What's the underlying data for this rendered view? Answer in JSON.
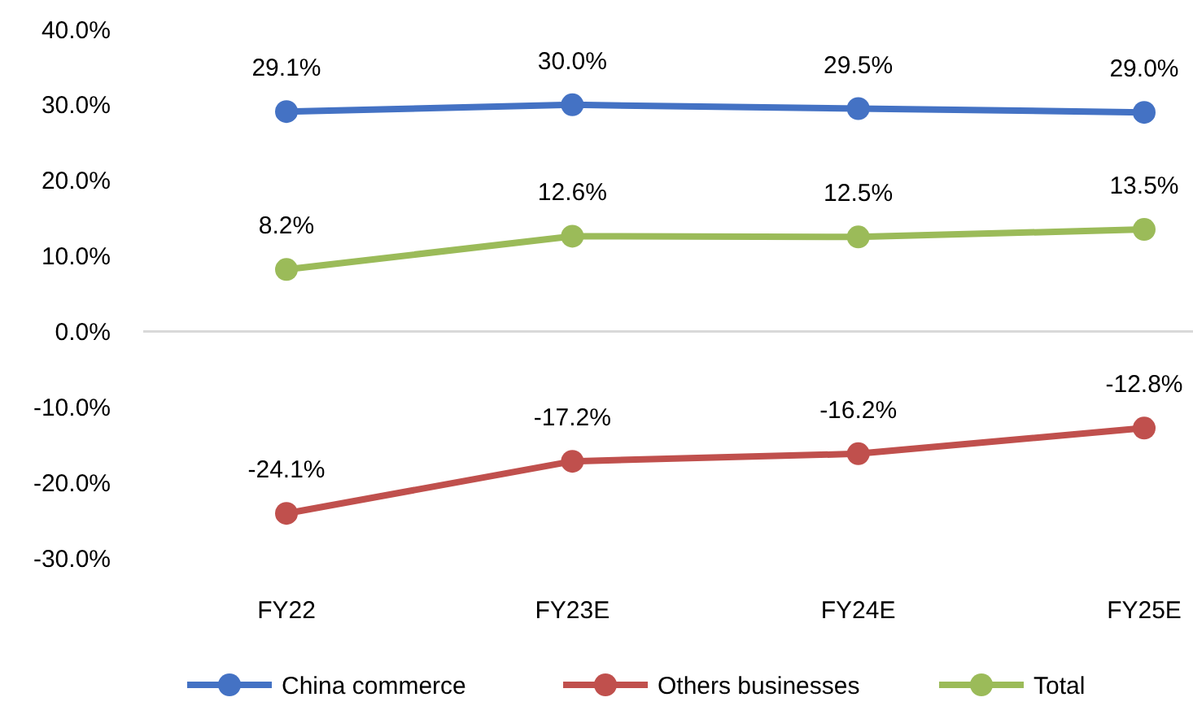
{
  "chart_data": {
    "type": "line",
    "categories": [
      "FY22",
      "FY23E",
      "FY24E",
      "FY25E"
    ],
    "series": [
      {
        "name": "China commerce",
        "color": "#4472c4",
        "values": [
          29.1,
          30.0,
          29.5,
          29.0
        ],
        "value_labels": [
          "29.1%",
          "30.0%",
          "29.5%",
          "29.0%"
        ]
      },
      {
        "name": "Others businesses",
        "color": "#c0504d",
        "values": [
          -24.1,
          -17.2,
          -16.2,
          -12.8
        ],
        "value_labels": [
          "-24.1%",
          "-17.2%",
          "-16.2%",
          "-12.8%"
        ]
      },
      {
        "name": "Total",
        "color": "#9bbb59",
        "values": [
          8.2,
          12.6,
          12.5,
          13.5
        ],
        "value_labels": [
          "8.2%",
          "12.6%",
          "12.5%",
          "13.5%"
        ]
      }
    ],
    "ylim": [
      -30,
      40
    ],
    "yticks": [
      {
        "value": -30,
        "label": "-30.0%"
      },
      {
        "value": -20,
        "label": "-20.0%"
      },
      {
        "value": -10,
        "label": "-10.0%"
      },
      {
        "value": 0,
        "label": "0.0%"
      },
      {
        "value": 10,
        "label": "10.0%"
      },
      {
        "value": 20,
        "label": "20.0%"
      },
      {
        "value": 30,
        "label": "30.0%"
      },
      {
        "value": 40,
        "label": "40.0%"
      }
    ],
    "legend": "bottom",
    "marker": "circle",
    "line_style": "solid"
  }
}
